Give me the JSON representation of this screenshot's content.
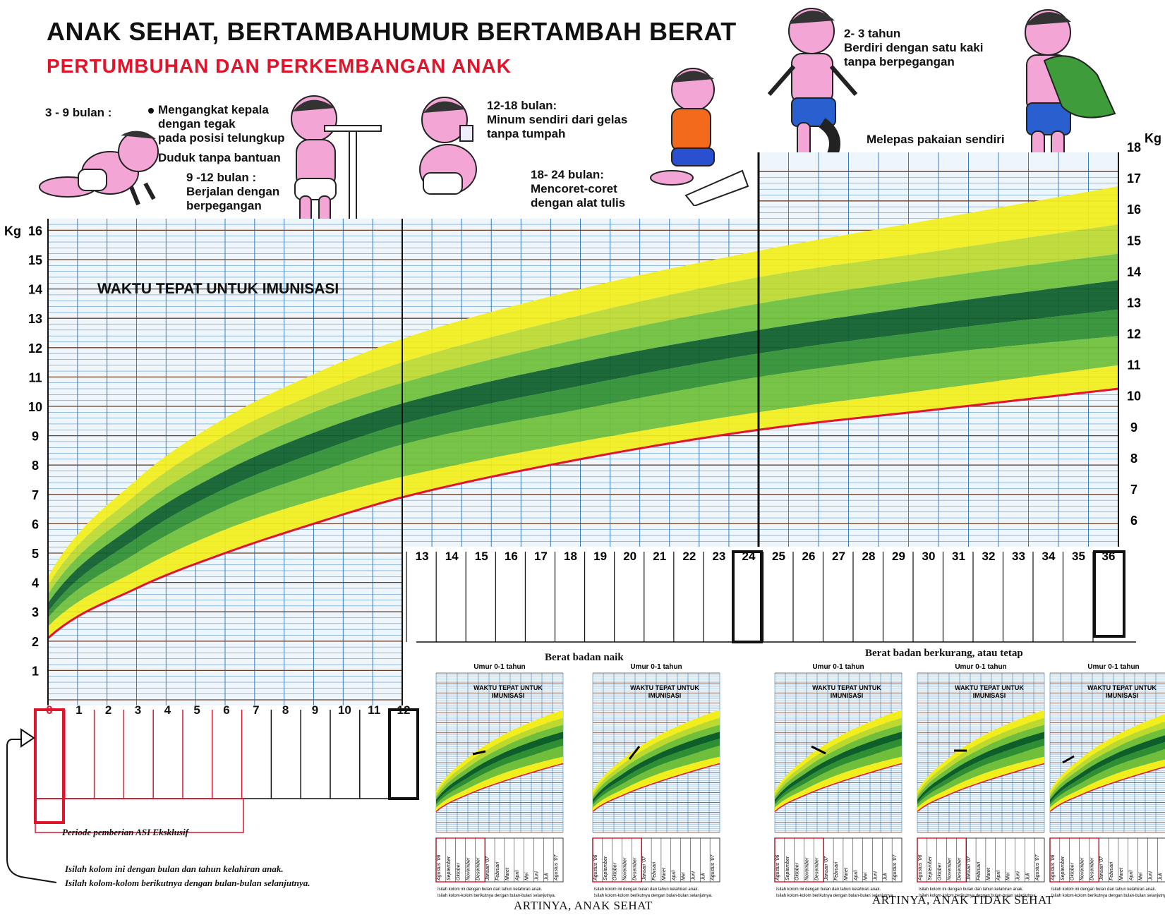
{
  "header": {
    "title": "ANAK SEHAT, BERTAMBAHUMUR BERTAMBAH BERAT",
    "subtitle": "PERTUMBUHAN DAN PERKEMBANGAN ANAK"
  },
  "milestones": {
    "m1_range": "3 - 9 bulan :",
    "m1_item1": "Mengangkat kepala\ndengan tegak\npada posisi telungkup",
    "m1_item2": "Duduk tanpa bantuan",
    "m2": "9 -12 bulan :\nBerjalan dengan\nberpegangan",
    "m3": "12-18 bulan:\nMinum sendiri dari gelas\ntanpa tumpah",
    "m4": "18- 24 bulan:\nMencoret-coret\ndengan alat tulis",
    "m5": "2- 3 tahun\nBerdiri dengan satu kaki\ntanpa berpegangan",
    "m6": "Melepas pakaian sendiri"
  },
  "immunization_label": "WAKTU TEPAT UNTUK IMUNISASI",
  "colors": {
    "title_red": "#e0142a",
    "grid_blue": "#3a7fc2",
    "grid_bg": "#eef6fb",
    "band_yellow": "#f2ee1c",
    "band_yellow_green": "#bcd930",
    "band_light_green": "#6fbf3a",
    "band_mid_green": "#2e8f32",
    "band_dark_green": "#0e5e2a",
    "red_line": "#e0142a"
  },
  "chart_data": {
    "type": "area",
    "title": "",
    "xlabel": "",
    "ylabel": "Kg",
    "xlim": [
      0,
      36
    ],
    "ylim": [
      0,
      16
    ],
    "ylim_right": [
      6,
      18
    ],
    "x_ticks_year1": [
      "0",
      "1",
      "2",
      "3",
      "4",
      "5",
      "6",
      "7",
      "8",
      "9",
      "10",
      "11",
      "12"
    ],
    "x_ticks_year2_3": [
      "13",
      "14",
      "15",
      "16",
      "17",
      "18",
      "19",
      "20",
      "21",
      "22",
      "23",
      "24",
      "25",
      "26",
      "27",
      "28",
      "29",
      "30",
      "31",
      "32",
      "33",
      "34",
      "35",
      "36"
    ],
    "y_ticks_left": [
      "1",
      "2",
      "3",
      "4",
      "5",
      "6",
      "7",
      "8",
      "9",
      "10",
      "11",
      "12",
      "13",
      "14",
      "15",
      "16"
    ],
    "y_ticks_right": [
      "6",
      "7",
      "8",
      "9",
      "10",
      "11",
      "12",
      "13",
      "14",
      "15",
      "16",
      "17",
      "18"
    ],
    "y_unit_left": "Kg",
    "y_unit_right": "Kg",
    "x": [
      0,
      3,
      6,
      9,
      12,
      18,
      24,
      30,
      36
    ],
    "series": [
      {
        "band": "upper_yellow",
        "values": [
          4.2,
          7.5,
          9.6,
          11.1,
          12.3,
          14.0,
          15.3,
          16.4,
          17.5
        ]
      },
      {
        "band": "upper_green",
        "values": [
          3.9,
          7.0,
          9.0,
          10.4,
          11.5,
          13.1,
          14.4,
          15.3,
          16.2
        ]
      },
      {
        "band": "upper_mid_green",
        "values": [
          3.6,
          6.5,
          8.4,
          9.8,
          10.8,
          12.3,
          13.5,
          14.4,
          15.2
        ]
      },
      {
        "band": "median_dark",
        "values": [
          3.3,
          6.0,
          7.8,
          9.1,
          10.1,
          11.5,
          12.6,
          13.5,
          14.3
        ]
      },
      {
        "band": "lower_mid_green",
        "values": [
          3.0,
          5.5,
          7.2,
          8.4,
          9.4,
          10.7,
          11.8,
          12.6,
          13.3
        ]
      },
      {
        "band": "lower_green",
        "values": [
          2.8,
          5.0,
          6.6,
          7.7,
          8.7,
          9.9,
          11.0,
          11.8,
          12.4
        ]
      },
      {
        "band": "lower_yellow",
        "values": [
          2.5,
          4.4,
          5.8,
          6.8,
          7.6,
          8.8,
          9.8,
          10.6,
          11.4
        ]
      },
      {
        "band": "red_line",
        "values": [
          2.1,
          3.8,
          5.0,
          6.0,
          6.9,
          8.2,
          9.2,
          9.9,
          10.6
        ]
      }
    ]
  },
  "asi_label": "Periode pemberian ASI Eksklusif",
  "instructions": {
    "line1": "Isilah kolom ini dengan bulan dan tahun kelahiran anak.",
    "line2": "Isilah kolom-kolom berikutnya dengan bulan-bulan selanjutnya."
  },
  "examples": {
    "healthy_caption": "Berat badan naik",
    "unhealthy_caption": "Berat badan berkurang, atau tetap",
    "healthy_result": "ARTINYA, ANAK SEHAT",
    "unhealthy_result": "ARTINYA, ANAK TIDAK SEHAT",
    "panel_title": "Umur 0-1 tahun",
    "panel_imun": "WAKTU TEPAT UNTUK\nIMUNISASI",
    "months": [
      "Agustus '06",
      "September",
      "Oktober",
      "November",
      "Desember",
      "Januari '07",
      "Februari",
      "Maret",
      "April",
      "Mei",
      "Juni",
      "Juli",
      "Agustus '07"
    ],
    "panel_note": "Isilah kolom ini dengan bulan dan tahun kelahiran anak.\nIsilah kolom-kolom berikutnya dengan bulan-bulan selanjutnya.",
    "panel_side_label": "September"
  }
}
